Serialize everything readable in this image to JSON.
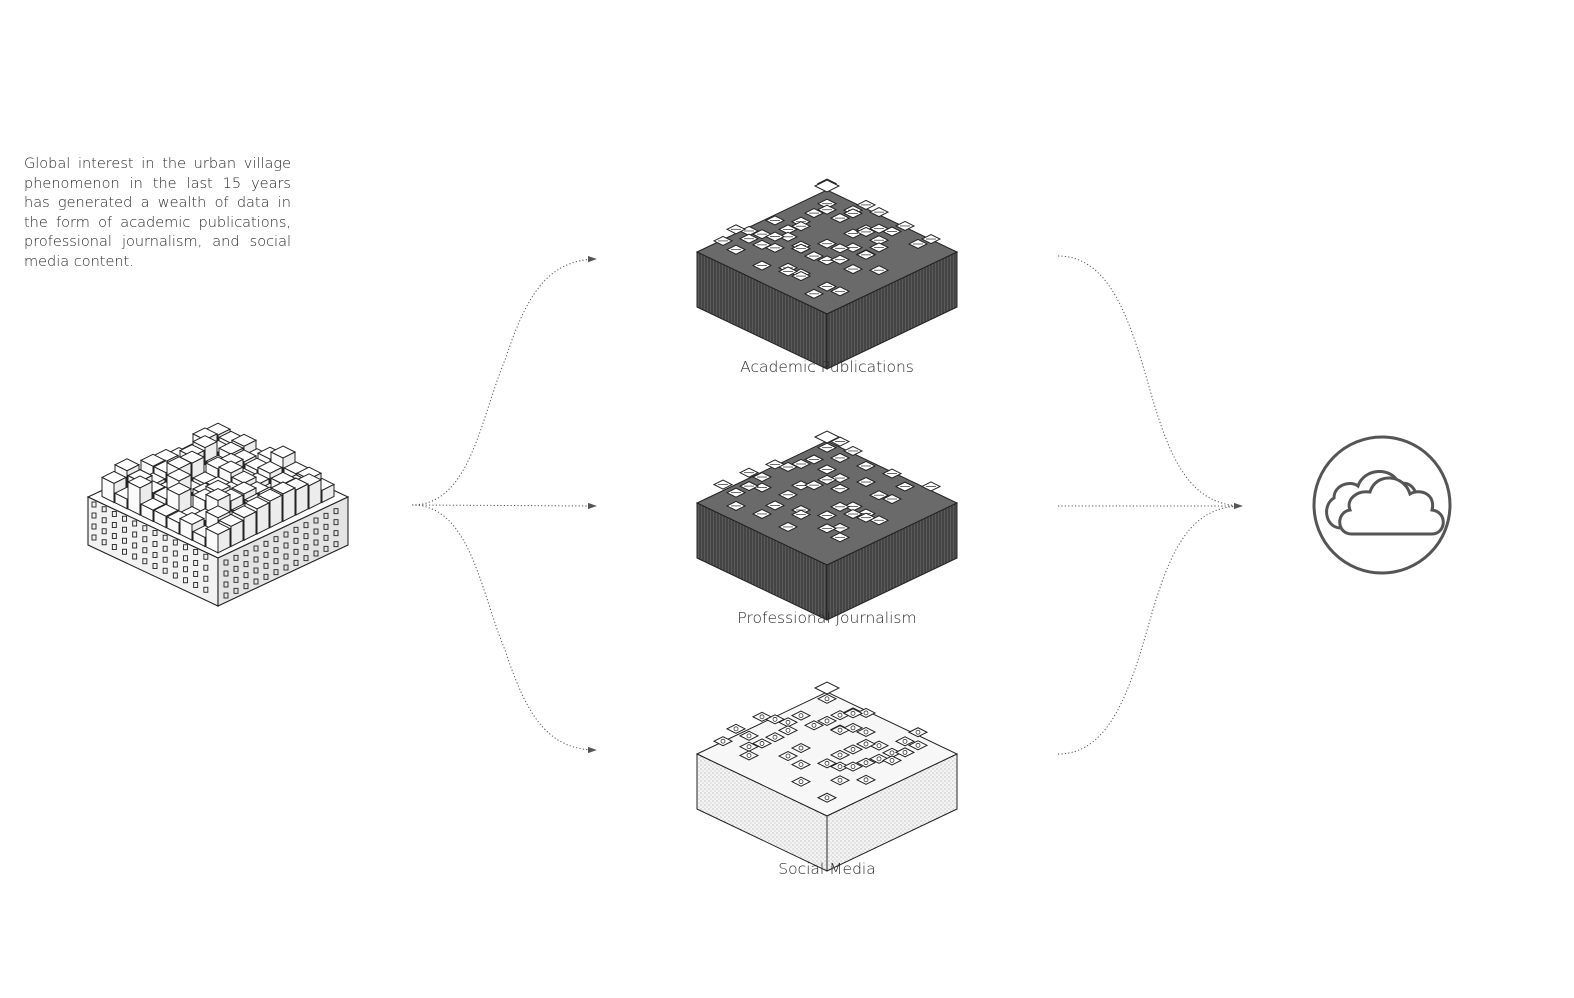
{
  "intro": {
    "text": "Global interest in the urban village phenomenon in the last 15 years has generated a wealth of data in the form of academic publications, professional journalism, and social media content."
  },
  "sources": [
    {
      "label": "Academic Publications",
      "style": "dark",
      "icon": "document-icon"
    },
    {
      "label": "Professional Journalism",
      "style": "dark",
      "icon": "document-icon"
    },
    {
      "label": "Social Media",
      "style": "light",
      "icon": "social-icon"
    }
  ],
  "colors": {
    "ink": "#2a2a2a",
    "dark_block": "#4a4a4a",
    "arrow": "#555555",
    "cloud": "#555555"
  },
  "destination": {
    "icon": "cloud-icon"
  }
}
